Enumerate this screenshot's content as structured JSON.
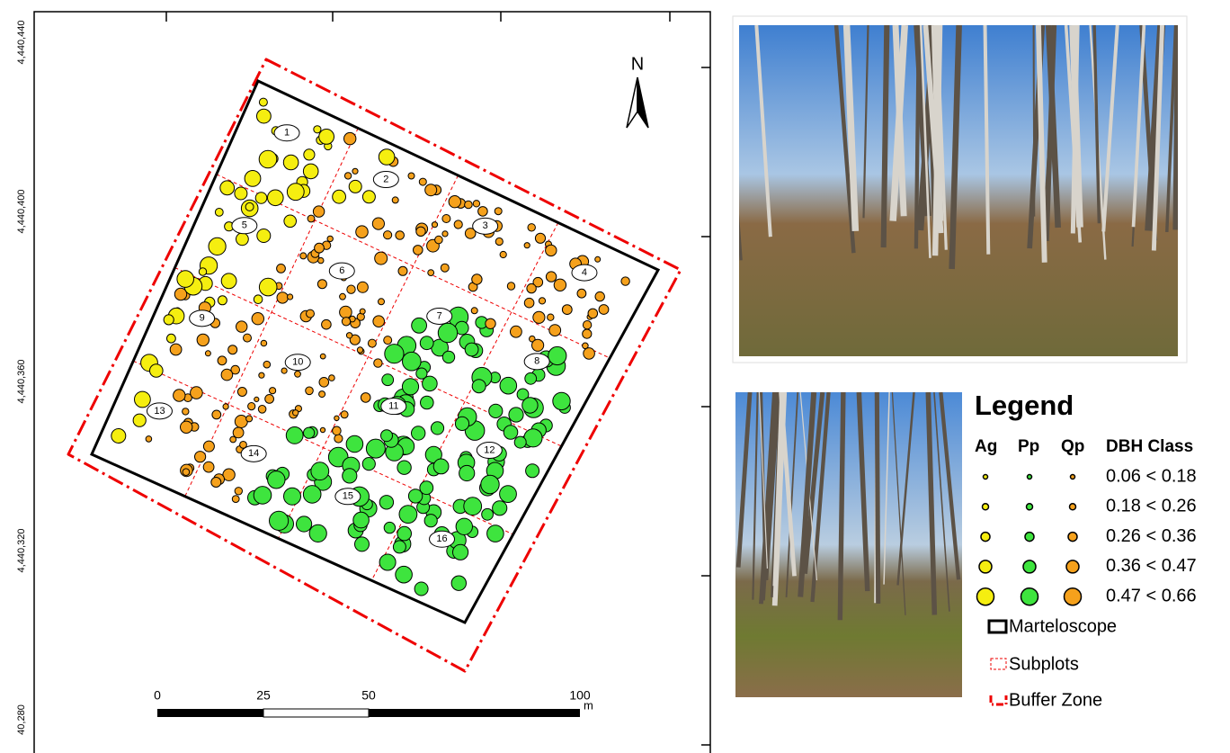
{
  "map": {
    "coordinate_labels": [
      "4,440,440",
      "4,440,400",
      "4,440,360",
      "4,440,320",
      "40,280"
    ],
    "north": "N",
    "subplot_labels": [
      "1",
      "2",
      "3",
      "4",
      "5",
      "6",
      "7",
      "8",
      "9",
      "10",
      "11",
      "12",
      "13",
      "14",
      "15",
      "16"
    ]
  },
  "scale_bar": {
    "labels": [
      "0",
      "25",
      "50",
      "100"
    ],
    "unit": "m"
  },
  "legend": {
    "title": "Legend",
    "columns": [
      "Ag",
      "Pp",
      "Qp",
      "DBH Class"
    ],
    "classes": [
      "0.06 < 0.18",
      "0.18 < 0.26",
      "0.26 < 0.36",
      "0.36 < 0.47",
      "0.47 < 0.66"
    ],
    "items": [
      "Marteloscope",
      "Subplots",
      "Buffer Zone"
    ]
  }
}
